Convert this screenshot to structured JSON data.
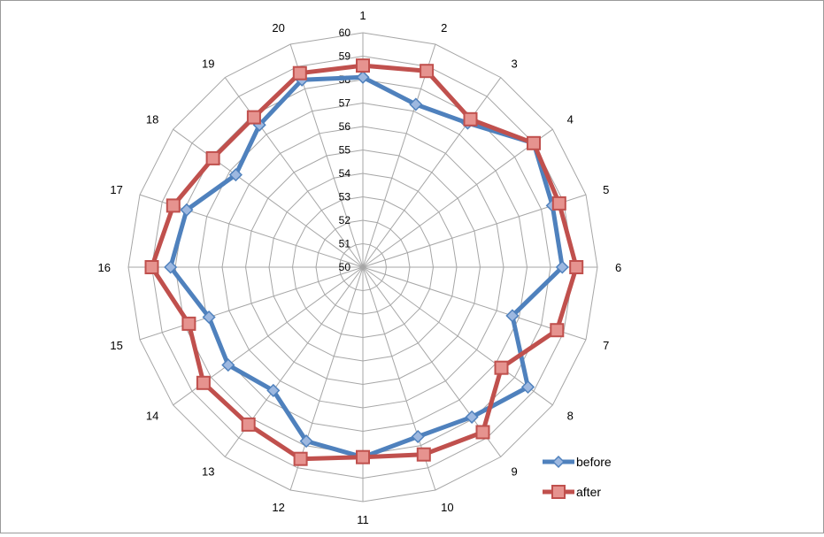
{
  "chart_data": {
    "type": "radar",
    "categories": [
      "1",
      "2",
      "3",
      "4",
      "5",
      "6",
      "7",
      "8",
      "9",
      "10",
      "11",
      "12",
      "13",
      "14",
      "15",
      "16",
      "17",
      "18",
      "19",
      "20"
    ],
    "radial_ticks": [
      "50",
      "51",
      "52",
      "53",
      "54",
      "55",
      "56",
      "57",
      "58",
      "59",
      "60"
    ],
    "rlim": [
      50,
      60
    ],
    "grid": true,
    "legend_position": "bottom-right",
    "series": [
      {
        "name": "before",
        "color": "#4f81bd",
        "marker": "diamond",
        "values": [
          58.1,
          57.3,
          57.6,
          59.0,
          58.5,
          58.5,
          56.7,
          58.7,
          57.9,
          57.6,
          58.1,
          57.8,
          56.5,
          57.1,
          56.9,
          58.2,
          57.9,
          56.7,
          57.5,
          58.4
        ]
      },
      {
        "name": "after",
        "color": "#c0504d",
        "marker": "square",
        "values": [
          58.6,
          58.8,
          57.8,
          59.0,
          58.8,
          59.1,
          58.7,
          57.3,
          58.7,
          58.4,
          58.1,
          58.6,
          58.3,
          58.4,
          57.8,
          59.0,
          58.5,
          57.9,
          57.9,
          58.7
        ]
      }
    ]
  }
}
